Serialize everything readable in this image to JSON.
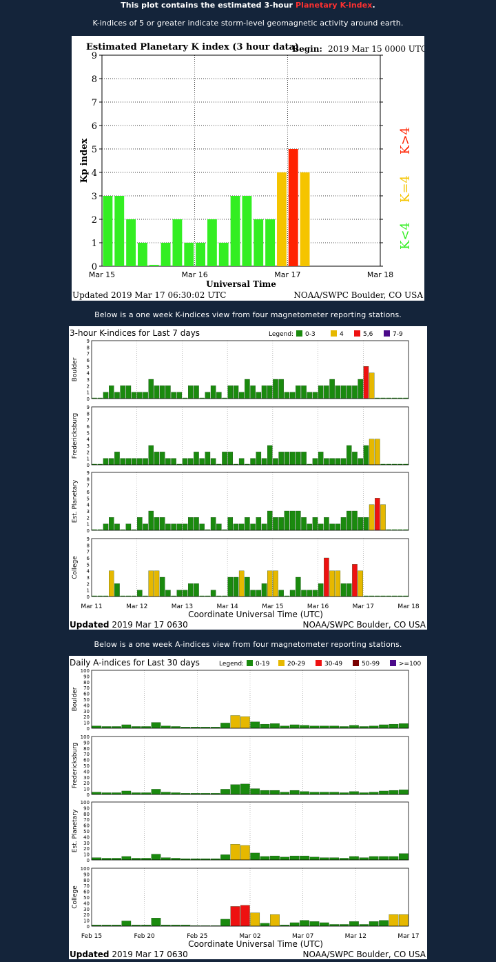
{
  "header": {
    "line1_pre": "This plot contains the estimated 3-hour ",
    "line1_link": "Planetary K-index",
    "line1_post": ".",
    "line2": "K-indices of 5 or greater indicate storm-level geomagnetic activity around earth.",
    "caption_week": "Below is a one week K-indices view from four magnetometer reporting stations.",
    "caption_month": "Below is a one week A-indices view from four magnetometer reporting stations."
  },
  "colors": {
    "background": "#14243a",
    "green_bright": "#33ee22",
    "yellow": "#f5c400",
    "red": "#ff2200",
    "green_dark": "#1a8a0e",
    "gold": "#e6b800",
    "red_dark": "#ee1111",
    "maroon": "#7a0000",
    "purple": "#4b0a8a"
  },
  "chart_data": [
    {
      "type": "bar",
      "title": "Estimated Planetary K index (3 hour data)",
      "begin_label": "Begin:",
      "begin_value": "2019 Mar 15 0000 UTC",
      "ylabel": "Kp index",
      "xlabel": "Universal Time",
      "ylim": [
        0,
        9
      ],
      "yticks": [
        "0",
        "1",
        "2",
        "3",
        "4",
        "5",
        "6",
        "7",
        "8",
        "9"
      ],
      "xticks": [
        "Mar 15",
        "Mar 16",
        "Mar 17",
        "Mar 18"
      ],
      "side_labels": [
        "K>4",
        "K=4",
        "K<4"
      ],
      "updated": "Updated 2019 Mar 17 06:30:02 UTC",
      "credit": "NOAA/SWPC Boulder, CO USA",
      "values": [
        3,
        3,
        2,
        1,
        0,
        1,
        2,
        1,
        1,
        2,
        1,
        3,
        3,
        2,
        2,
        4,
        5,
        4
      ]
    },
    {
      "type": "bar",
      "title": "3-hour K-indices for Last 7 days",
      "legend_label": "Legend:",
      "legend": [
        "0-3",
        "4",
        "5,6",
        "7-9"
      ],
      "xlabel": "Coordinate Universal Time (UTC)",
      "xticks": [
        "Mar 11",
        "Mar 12",
        "Mar 13",
        "Mar 14",
        "Mar 15",
        "Mar 16",
        "Mar 17",
        "Mar 18"
      ],
      "yticks": [
        "0",
        "1",
        "2",
        "3",
        "4",
        "5",
        "6",
        "7",
        "8",
        "9"
      ],
      "updated_bold": "Updated",
      "updated_rest": " 2019 Mar 17 0630",
      "credit": "NOAA/SWPC Boulder, CO USA",
      "series": [
        {
          "name": "Boulder",
          "values": [
            0,
            0,
            1,
            2,
            1,
            2,
            2,
            1,
            1,
            1,
            3,
            2,
            2,
            2,
            1,
            1,
            0,
            2,
            2,
            0,
            1,
            2,
            1,
            0,
            2,
            2,
            1,
            3,
            2,
            1,
            2,
            2,
            3,
            3,
            1,
            1,
            2,
            2,
            1,
            1,
            2,
            2,
            3,
            2,
            2,
            2,
            2,
            3,
            5,
            4,
            0,
            0,
            0,
            0,
            0,
            0
          ]
        },
        {
          "name": "Fredericksburg",
          "values": [
            0,
            0,
            1,
            1,
            2,
            1,
            1,
            1,
            1,
            1,
            3,
            2,
            2,
            1,
            1,
            0,
            1,
            1,
            2,
            1,
            2,
            1,
            0,
            2,
            2,
            0,
            1,
            0,
            1,
            2,
            1,
            3,
            1,
            2,
            2,
            2,
            2,
            2,
            0,
            1,
            2,
            1,
            1,
            1,
            1,
            3,
            2,
            1,
            3,
            4,
            4,
            0,
            0,
            0,
            0,
            0
          ]
        },
        {
          "name": "Est. Planetary",
          "values": [
            0,
            0,
            1,
            2,
            1,
            0,
            1,
            0,
            2,
            1,
            3,
            2,
            2,
            1,
            1,
            1,
            1,
            2,
            2,
            1,
            0,
            2,
            1,
            0,
            2,
            1,
            1,
            2,
            1,
            2,
            1,
            3,
            2,
            2,
            3,
            3,
            3,
            2,
            1,
            2,
            1,
            2,
            1,
            1,
            2,
            3,
            3,
            2,
            2,
            4,
            5,
            4,
            0,
            0,
            0,
            0
          ]
        },
        {
          "name": "College",
          "values": [
            0,
            0,
            0,
            4,
            2,
            0,
            0,
            0,
            1,
            0,
            4,
            4,
            3,
            1,
            0,
            1,
            1,
            2,
            2,
            0,
            0,
            1,
            0,
            0,
            3,
            3,
            4,
            3,
            1,
            1,
            2,
            4,
            4,
            1,
            0,
            1,
            3,
            1,
            1,
            1,
            2,
            6,
            4,
            4,
            2,
            2,
            5,
            4,
            0,
            0,
            0,
            0,
            0,
            0,
            0,
            0
          ]
        }
      ]
    },
    {
      "type": "bar",
      "title": "Daily A-indices for Last 30 days",
      "legend_label": "Legend:",
      "legend": [
        "0-19",
        "20-29",
        "30-49",
        "50-99",
        ">=100"
      ],
      "xlabel": "Coordinate Universal Time (UTC)",
      "xticks": [
        "Feb 15",
        "Feb 20",
        "Feb 25",
        "Mar 02",
        "Mar 07",
        "Mar 12",
        "Mar 17"
      ],
      "yticks": [
        "0",
        "10",
        "20",
        "30",
        "40",
        "50",
        "60",
        "70",
        "80",
        "90",
        "100"
      ],
      "updated_bold": "Updated",
      "updated_rest": " 2019 Mar 17 0630",
      "credit": "NOAA/SWPC Boulder, CO USA",
      "series": [
        {
          "name": "Boulder",
          "values": [
            4,
            3,
            3,
            6,
            3,
            3,
            10,
            4,
            3,
            2,
            2,
            2,
            2,
            9,
            22,
            20,
            11,
            7,
            8,
            4,
            6,
            5,
            4,
            4,
            4,
            3,
            5,
            3,
            4,
            6,
            7,
            8
          ]
        },
        {
          "name": "Fredericksburg",
          "values": [
            4,
            3,
            3,
            6,
            3,
            3,
            9,
            4,
            3,
            2,
            2,
            2,
            2,
            9,
            17,
            18,
            10,
            7,
            7,
            4,
            7,
            5,
            4,
            4,
            4,
            3,
            5,
            3,
            4,
            6,
            7,
            8
          ]
        },
        {
          "name": "Est. Planetary",
          "values": [
            4,
            3,
            3,
            6,
            3,
            3,
            10,
            4,
            3,
            2,
            2,
            2,
            2,
            9,
            27,
            25,
            12,
            6,
            7,
            5,
            7,
            7,
            5,
            4,
            4,
            3,
            6,
            4,
            6,
            6,
            6,
            11
          ]
        },
        {
          "name": "College",
          "values": [
            2,
            2,
            2,
            9,
            2,
            2,
            14,
            2,
            2,
            2,
            1,
            1,
            1,
            12,
            34,
            36,
            23,
            5,
            20,
            2,
            6,
            10,
            8,
            6,
            3,
            3,
            8,
            3,
            8,
            10,
            20,
            20
          ]
        }
      ]
    }
  ]
}
